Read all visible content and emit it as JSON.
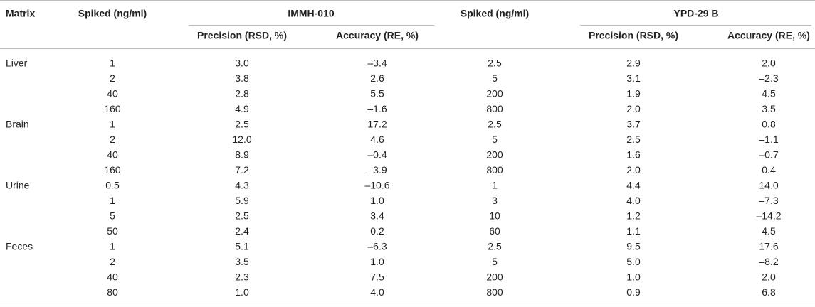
{
  "header": {
    "matrix": "Matrix",
    "spiked_1": "Spiked (ng/ml)",
    "compound_1": {
      "title": "IMMH-010",
      "precision": "Precision (RSD, %)",
      "accuracy": "Accuracy (RE, %)"
    },
    "spiked_2": "Spiked (ng/ml)",
    "compound_2": {
      "title": "YPD-29 B",
      "precision": "Precision (RSD, %)",
      "accuracy": "Accuracy (RE, %)"
    }
  },
  "groups": [
    {
      "matrix": "Liver",
      "rows": [
        [
          "1",
          "3.0",
          "–3.4",
          "2.5",
          "2.9",
          "2.0"
        ],
        [
          "2",
          "3.8",
          "2.6",
          "5",
          "3.1",
          "–2.3"
        ],
        [
          "40",
          "2.8",
          "5.5",
          "200",
          "1.9",
          "4.5"
        ],
        [
          "160",
          "4.9",
          "–1.6",
          "800",
          "2.0",
          "3.5"
        ]
      ]
    },
    {
      "matrix": "Brain",
      "rows": [
        [
          "1",
          "2.5",
          "17.2",
          "2.5",
          "3.7",
          "0.8"
        ],
        [
          "2",
          "12.0",
          "4.6",
          "5",
          "2.5",
          "–1.1"
        ],
        [
          "40",
          "8.9",
          "–0.4",
          "200",
          "1.6",
          "–0.7"
        ],
        [
          "160",
          "7.2",
          "–3.9",
          "800",
          "2.0",
          "0.4"
        ]
      ]
    },
    {
      "matrix": "Urine",
      "rows": [
        [
          "0.5",
          "4.3",
          "–10.6",
          "1",
          "4.4",
          "14.0"
        ],
        [
          "1",
          "5.9",
          "1.0",
          "3",
          "4.0",
          "–7.3"
        ],
        [
          "5",
          "2.5",
          "3.4",
          "10",
          "1.2",
          "–14.2"
        ],
        [
          "50",
          "2.4",
          "0.2",
          "60",
          "1.1",
          "4.5"
        ]
      ]
    },
    {
      "matrix": "Feces",
      "rows": [
        [
          "1",
          "5.1",
          "–6.3",
          "2.5",
          "9.5",
          "17.6"
        ],
        [
          "2",
          "3.5",
          "1.0",
          "5",
          "5.0",
          "–8.2"
        ],
        [
          "40",
          "2.3",
          "7.5",
          "200",
          "1.0",
          "2.0"
        ],
        [
          "80",
          "1.0",
          "4.0",
          "800",
          "0.9",
          "6.8"
        ]
      ]
    }
  ]
}
